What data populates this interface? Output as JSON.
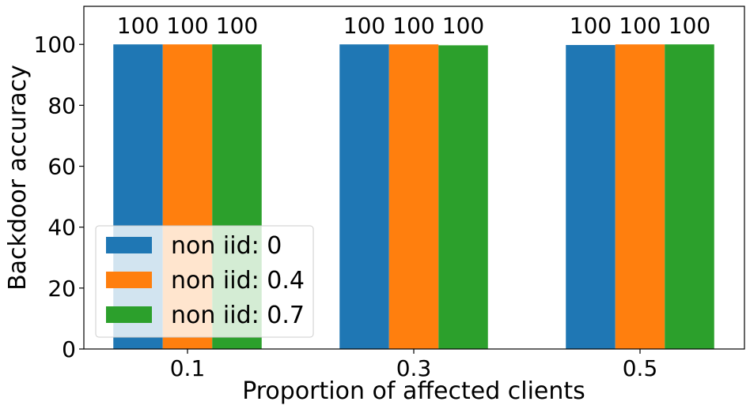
{
  "chart_data": {
    "type": "bar",
    "title": "",
    "xlabel": "Proportion of affected clients",
    "ylabel": "Backdoor accuracy",
    "categories": [
      "0.1",
      "0.3",
      "0.5"
    ],
    "series": [
      {
        "name": "non iid: 0",
        "values": [
          100,
          100,
          99.8
        ],
        "color": "#1f77b4",
        "labels": [
          "100",
          "100",
          "100"
        ]
      },
      {
        "name": "non iid: 0.4",
        "values": [
          100,
          100,
          100
        ],
        "color": "#ff7f0e",
        "labels": [
          "100",
          "100",
          "100"
        ]
      },
      {
        "name": "non iid: 0.7",
        "values": [
          100,
          99.7,
          100
        ],
        "color": "#2ca02c",
        "labels": [
          "100",
          "100",
          "100"
        ]
      }
    ],
    "yticks": [
      "0",
      "20",
      "40",
      "60",
      "80",
      "100"
    ],
    "ylim": [
      0,
      112.5
    ],
    "grid": false,
    "legend_position": "lower-left"
  }
}
